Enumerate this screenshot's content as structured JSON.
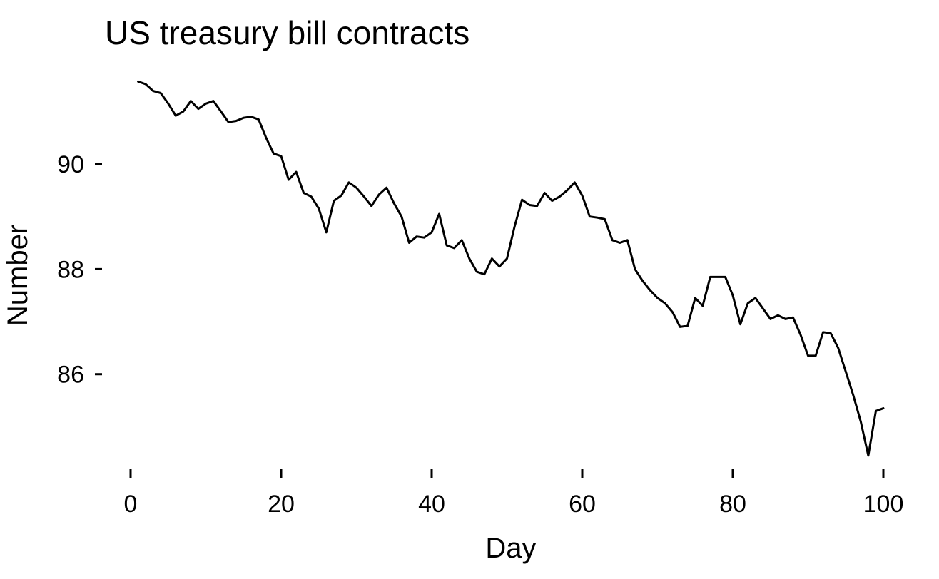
{
  "chart_data": {
    "type": "line",
    "title": "US treasury bill contracts",
    "xlabel": "Day",
    "ylabel": "Number",
    "xlim": [
      0,
      100
    ],
    "ylim": [
      84.3,
      91.9
    ],
    "x_ticks": [
      0,
      20,
      40,
      60,
      80,
      100
    ],
    "y_ticks": [
      86,
      88,
      90
    ],
    "grid": false,
    "legend": "none",
    "colors": {
      "line": "#000000",
      "text": "#000000"
    },
    "series": [
      {
        "x": [
          1,
          2,
          3,
          4,
          5,
          6,
          7,
          8,
          9,
          10,
          11,
          12,
          13,
          14,
          15,
          16,
          17,
          18,
          19,
          20,
          21,
          22,
          23,
          24,
          25,
          26,
          27,
          28,
          29,
          30,
          31,
          32,
          33,
          34,
          35,
          36,
          37,
          38,
          39,
          40,
          41,
          42,
          43,
          44,
          45,
          46,
          47,
          48,
          49,
          50,
          51,
          52,
          53,
          54,
          55,
          56,
          57,
          58,
          59,
          60,
          61,
          62,
          63,
          64,
          65,
          66,
          67,
          68,
          69,
          70,
          71,
          72,
          73,
          74,
          75,
          76,
          77,
          78,
          79,
          80,
          81,
          82,
          83,
          84,
          85,
          86,
          87,
          88,
          89,
          90,
          91,
          92,
          93,
          94,
          95,
          96,
          97,
          98,
          99,
          100
        ],
        "values": [
          91.57,
          91.52,
          91.39,
          91.35,
          91.15,
          90.92,
          91.0,
          91.2,
          91.05,
          91.15,
          91.2,
          91.0,
          90.8,
          90.82,
          90.88,
          90.9,
          90.85,
          90.5,
          90.2,
          90.15,
          89.7,
          89.85,
          89.45,
          89.38,
          89.15,
          88.7,
          89.3,
          89.4,
          89.65,
          89.55,
          89.38,
          89.2,
          89.42,
          89.55,
          89.25,
          89.0,
          88.5,
          88.62,
          88.6,
          88.7,
          89.05,
          88.45,
          88.4,
          88.55,
          88.2,
          87.95,
          87.9,
          88.2,
          88.05,
          88.2,
          88.8,
          89.32,
          89.22,
          89.2,
          89.45,
          89.3,
          89.38,
          89.5,
          89.65,
          89.4,
          89.0,
          88.98,
          88.95,
          88.55,
          88.5,
          88.55,
          88.0,
          87.78,
          87.6,
          87.45,
          87.35,
          87.18,
          86.9,
          86.92,
          87.45,
          87.3,
          87.85,
          87.85,
          87.85,
          87.5,
          86.95,
          87.35,
          87.45,
          87.25,
          87.05,
          87.12,
          87.05,
          87.08,
          86.75,
          86.35,
          86.35,
          86.8,
          86.78,
          86.5,
          86.05,
          85.6,
          85.1,
          84.45,
          85.3,
          85.35
        ]
      }
    ]
  }
}
